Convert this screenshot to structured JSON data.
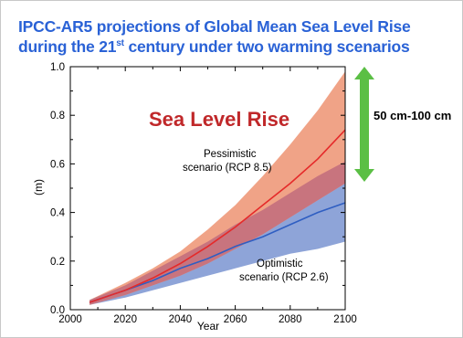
{
  "title": {
    "line1": "IPCC-AR5 projections of Global Mean Sea Level Rise",
    "line2_pre": "during the 21",
    "line2_sup": "st",
    "line2_post": " century under two warming scenarios"
  },
  "chart_data": {
    "type": "area",
    "heading": "Sea Level Rise",
    "xlabel": "Year",
    "ylabel": "(m)",
    "xlim": [
      2000,
      2100
    ],
    "ylim": [
      0.0,
      1.0
    ],
    "xticks": [
      2000,
      2020,
      2040,
      2060,
      2080,
      2100
    ],
    "yticks": [
      0.0,
      0.2,
      0.4,
      0.6,
      0.8,
      1.0
    ],
    "x": [
      2007,
      2020,
      2030,
      2040,
      2050,
      2060,
      2070,
      2080,
      2090,
      2100
    ],
    "series": [
      {
        "name": "Pessimistic scenario (RCP 8.5)",
        "color": "#e52a2a",
        "band_color": "#f0a387",
        "median": [
          0.03,
          0.08,
          0.13,
          0.19,
          0.26,
          0.34,
          0.43,
          0.52,
          0.62,
          0.74
        ],
        "lower": [
          0.02,
          0.06,
          0.1,
          0.14,
          0.19,
          0.25,
          0.31,
          0.38,
          0.45,
          0.52
        ],
        "upper": [
          0.04,
          0.11,
          0.17,
          0.24,
          0.33,
          0.43,
          0.55,
          0.68,
          0.82,
          0.98
        ]
      },
      {
        "name": "Optimistic scenario (RCP 2.6)",
        "color": "#2f5ec2",
        "band_color": "#8ea4d8",
        "median": [
          0.03,
          0.08,
          0.12,
          0.17,
          0.21,
          0.26,
          0.3,
          0.35,
          0.4,
          0.44
        ],
        "lower": [
          0.02,
          0.05,
          0.08,
          0.11,
          0.14,
          0.17,
          0.2,
          0.23,
          0.25,
          0.28
        ],
        "upper": [
          0.04,
          0.1,
          0.16,
          0.22,
          0.28,
          0.35,
          0.41,
          0.48,
          0.55,
          0.61
        ]
      }
    ],
    "overlap_color": "#c8747e",
    "annotations": {
      "pessimistic_line1": "Pessimistic",
      "pessimistic_line2": "scenario (RCP 8.5)",
      "optimistic_line1": "Optimistic",
      "optimistic_line2": "scenario (RCP  2.6)"
    },
    "range_arrow": {
      "label": "50 cm-100 cm",
      "from": 0.5,
      "to": 1.0,
      "color": "#5bbf45"
    }
  }
}
